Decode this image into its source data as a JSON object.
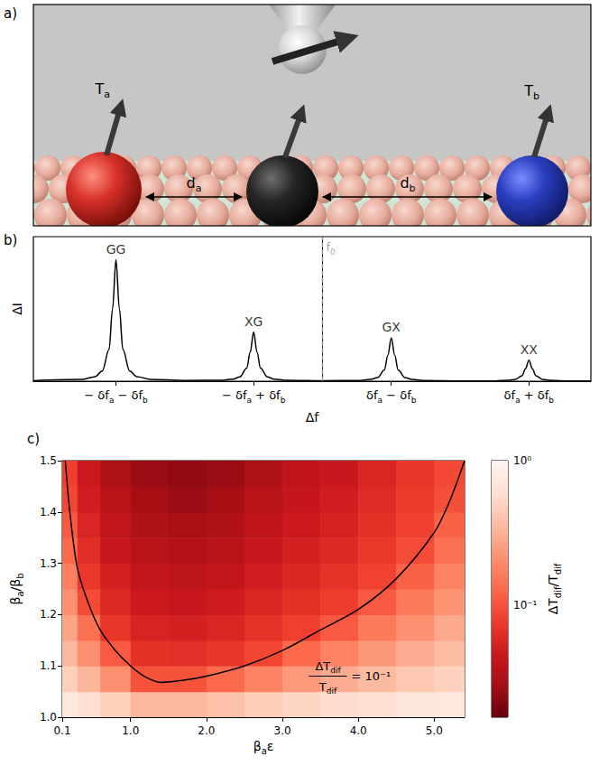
{
  "diagram": {
    "letter": "a)",
    "spins": [
      [
        {
          "text": "T"
        },
        {
          "sub": "a"
        }
      ],
      [
        {
          "text": "T"
        },
        {
          "sub": "b"
        }
      ]
    ],
    "distances": [
      [
        {
          "text": "d"
        },
        {
          "sub": "a"
        }
      ],
      [
        {
          "text": "d"
        },
        {
          "sub": "b"
        }
      ]
    ]
  },
  "chart_data": [
    {
      "letter": "b)",
      "type": "line",
      "color": "#000000",
      "x": [
        -4.2,
        -3.5,
        -3.3,
        -3.2,
        -3.1,
        -3.05,
        -3,
        -2.95,
        -2.9,
        -2.8,
        -2.7,
        -2.5,
        -2,
        -1.5,
        -1.3,
        -1.2,
        -1.1,
        -1.05,
        -1,
        -0.95,
        -0.9,
        -0.8,
        -0.7,
        -0.5,
        0,
        0.5,
        0.7,
        0.8,
        0.9,
        0.95,
        1,
        1.05,
        1.1,
        1.2,
        1.3,
        1.5,
        2,
        2.5,
        2.7,
        2.8,
        2.9,
        2.95,
        3,
        3.05,
        3.1,
        3.2,
        3.3,
        3.5,
        3.9
      ],
      "values": [
        0.003,
        0.012,
        0.032,
        0.07,
        0.22,
        0.5,
        0.84,
        0.5,
        0.22,
        0.07,
        0.032,
        0.013,
        0.005,
        0.006,
        0.014,
        0.03,
        0.09,
        0.2,
        0.34,
        0.2,
        0.09,
        0.03,
        0.014,
        0.006,
        0.003,
        0.005,
        0.012,
        0.025,
        0.078,
        0.18,
        0.3,
        0.18,
        0.078,
        0.025,
        0.012,
        0.005,
        0.002,
        0.002,
        0.006,
        0.012,
        0.038,
        0.086,
        0.145,
        0.086,
        0.038,
        0.012,
        0.006,
        0.002,
        0.001
      ],
      "xlim": [
        -4.2,
        3.9
      ],
      "ylim": [
        0,
        1
      ],
      "xticks": [
        {
          "value": -3,
          "label": [
            {
              "text": "− δf"
            },
            {
              "sub": "a"
            },
            {
              "text": " − δf"
            },
            {
              "sub": "b"
            }
          ]
        },
        {
          "value": -1,
          "label": [
            {
              "text": "− δf"
            },
            {
              "sub": "a"
            },
            {
              "text": " + δf"
            },
            {
              "sub": "b"
            }
          ]
        },
        {
          "value": 1,
          "label": [
            {
              "text": "δf"
            },
            {
              "sub": "a"
            },
            {
              "text": " − δf"
            },
            {
              "sub": "b"
            }
          ]
        },
        {
          "value": 3,
          "label": [
            {
              "text": "δf"
            },
            {
              "sub": "a"
            },
            {
              "text": " + δf"
            },
            {
              "sub": "b"
            }
          ]
        }
      ],
      "tick_labels": "x",
      "x_label": "Δf",
      "y_label": "ΔI",
      "peaks": [
        {
          "label": "GG",
          "x": -3,
          "y": 0.84
        },
        {
          "label": "XG",
          "x": -1,
          "y": 0.34
        },
        {
          "label": "GX",
          "x": 1,
          "y": 0.3
        },
        {
          "label": "XX",
          "x": 3,
          "y": 0.145
        }
      ],
      "reference_line": {
        "x": 0,
        "label": [
          {
            "text": "f"
          },
          {
            "sub": "0"
          }
        ],
        "line_style": "dashed"
      }
    },
    {
      "letter": "c)",
      "type": "heatmap",
      "x_edges": [
        0.1,
        0.3,
        0.6,
        1.0,
        1.5,
        2.0,
        2.5,
        3.0,
        3.5,
        4.0,
        4.5,
        5.0,
        5.4
      ],
      "y_edges": [
        1.0,
        1.05,
        1.1,
        1.15,
        1.2,
        1.25,
        1.3,
        1.35,
        1.4,
        1.45,
        1.5
      ],
      "cells": [
        [
          0.71,
          0.6,
          0.48,
          0.35,
          0.35,
          0.39,
          0.46,
          0.51,
          0.58,
          0.62,
          0.68,
          0.72
        ],
        [
          0.48,
          0.34,
          0.21,
          0.1,
          0.1,
          0.13,
          0.18,
          0.24,
          0.3,
          0.36,
          0.43,
          0.5
        ],
        [
          0.35,
          0.21,
          0.11,
          0.068,
          0.066,
          0.073,
          0.088,
          0.13,
          0.18,
          0.23,
          0.3,
          0.37
        ],
        [
          0.27,
          0.14,
          0.072,
          0.056,
          0.053,
          0.058,
          0.069,
          0.082,
          0.11,
          0.16,
          0.21,
          0.29
        ],
        [
          0.21,
          0.093,
          0.06,
          0.048,
          0.045,
          0.049,
          0.058,
          0.068,
          0.08,
          0.11,
          0.16,
          0.22
        ],
        [
          0.17,
          0.074,
          0.052,
          0.041,
          0.039,
          0.042,
          0.051,
          0.059,
          0.069,
          0.084,
          0.12,
          0.18
        ],
        [
          0.13,
          0.064,
          0.046,
          0.037,
          0.034,
          0.037,
          0.045,
          0.053,
          0.061,
          0.074,
          0.093,
          0.14
        ],
        [
          0.11,
          0.057,
          0.041,
          0.033,
          0.03,
          0.033,
          0.04,
          0.048,
          0.055,
          0.068,
          0.083,
          0.12
        ],
        [
          0.089,
          0.051,
          0.036,
          0.029,
          0.026,
          0.029,
          0.036,
          0.043,
          0.051,
          0.063,
          0.077,
          0.098
        ],
        [
          0.082,
          0.047,
          0.033,
          0.026,
          0.024,
          0.026,
          0.033,
          0.04,
          0.046,
          0.058,
          0.073,
          0.091
        ]
      ],
      "xlim": [
        0.1,
        5.4
      ],
      "ylim": [
        1.0,
        1.5
      ],
      "xticks": [
        0.1,
        {
          "value": 1,
          "label": "1.0"
        },
        {
          "value": 2,
          "label": "2.0"
        },
        {
          "value": 3,
          "label": "3.0"
        },
        {
          "value": 4,
          "label": "4.0"
        },
        {
          "value": 5,
          "label": "5.0"
        }
      ],
      "yticks": [
        {
          "value": 1,
          "label": "1.0"
        },
        1.1,
        1.2,
        1.3,
        1.4,
        1.5
      ],
      "x_label": [
        {
          "text": "β"
        },
        {
          "sub": "a"
        },
        {
          "text": "ε"
        }
      ],
      "y_label": [
        {
          "text": "β"
        },
        {
          "sub": "a"
        },
        {
          "text": "/β"
        },
        {
          "sub": "b"
        }
      ],
      "colorbar": {
        "log": true,
        "range": [
          0.017,
          1
        ],
        "ticks": [
          {
            "value": 1,
            "label": "10⁰"
          },
          {
            "value": 0.1,
            "label": "10⁻¹"
          }
        ],
        "label": [
          {
            "text": "ΔT"
          },
          {
            "sub": "dif"
          },
          {
            "text": "/T"
          },
          {
            "sub": "dif"
          }
        ]
      },
      "contour": {
        "level": 0.1,
        "x": [
          0.14,
          0.2,
          0.3,
          0.45,
          0.6,
          0.8,
          1.0,
          1.2,
          1.4,
          1.7,
          2.0,
          2.5,
          3.0,
          3.5,
          4.0,
          4.5,
          5.0,
          5.2,
          5.4
        ],
        "y": [
          1.5,
          1.4,
          1.29,
          1.22,
          1.17,
          1.13,
          1.1,
          1.078,
          1.068,
          1.072,
          1.08,
          1.1,
          1.13,
          1.17,
          1.21,
          1.27,
          1.36,
          1.42,
          1.5
        ],
        "label": {
          "numerator": [
            {
              "text": "ΔT"
            },
            {
              "sub": "dif"
            }
          ],
          "denominator": [
            {
              "text": "T"
            },
            {
              "sub": "dif"
            }
          ],
          "rhs": "= 10⁻¹",
          "x": 3.6,
          "y": 1.08
        }
      }
    }
  ]
}
